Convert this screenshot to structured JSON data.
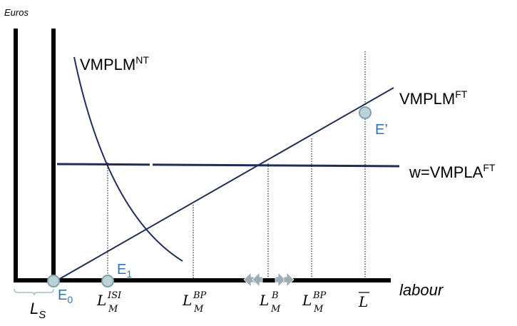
{
  "axis": {
    "y_label": "Euros",
    "x_label": "labour"
  },
  "curves": {
    "vmplm_nt": {
      "base": "VMPLM",
      "sup": "NT"
    },
    "vmplm_ft": {
      "base": "VMPLM",
      "sup": "FT"
    },
    "wage": {
      "base": "w=VMPLA",
      "sup": "FT"
    }
  },
  "points": {
    "e_prime": "E’",
    "e1": {
      "base": "E",
      "sub": "1"
    },
    "e0": {
      "base": "E",
      "sub": "0"
    }
  },
  "x_labels": {
    "l_isi": {
      "base": "L",
      "sub": "M",
      "sup": "ISI"
    },
    "l_bp_left": {
      "base": "L",
      "sub": "M",
      "sup": "BP"
    },
    "l_b": {
      "base": "L",
      "sub": "M",
      "sup": "B"
    },
    "l_bp_right": {
      "base": "L",
      "sub": "M",
      "sup": "BP"
    },
    "l_bar": "L"
  },
  "ls_label": {
    "base": "L",
    "sub": "S"
  },
  "colors": {
    "curve": "#1f2d5c",
    "axis": "#000000",
    "point_fill": "#b9d3d8",
    "point_stroke": "#7fa3aa",
    "point_label": "#2e75b6",
    "arrow": "#9aaeb4"
  }
}
